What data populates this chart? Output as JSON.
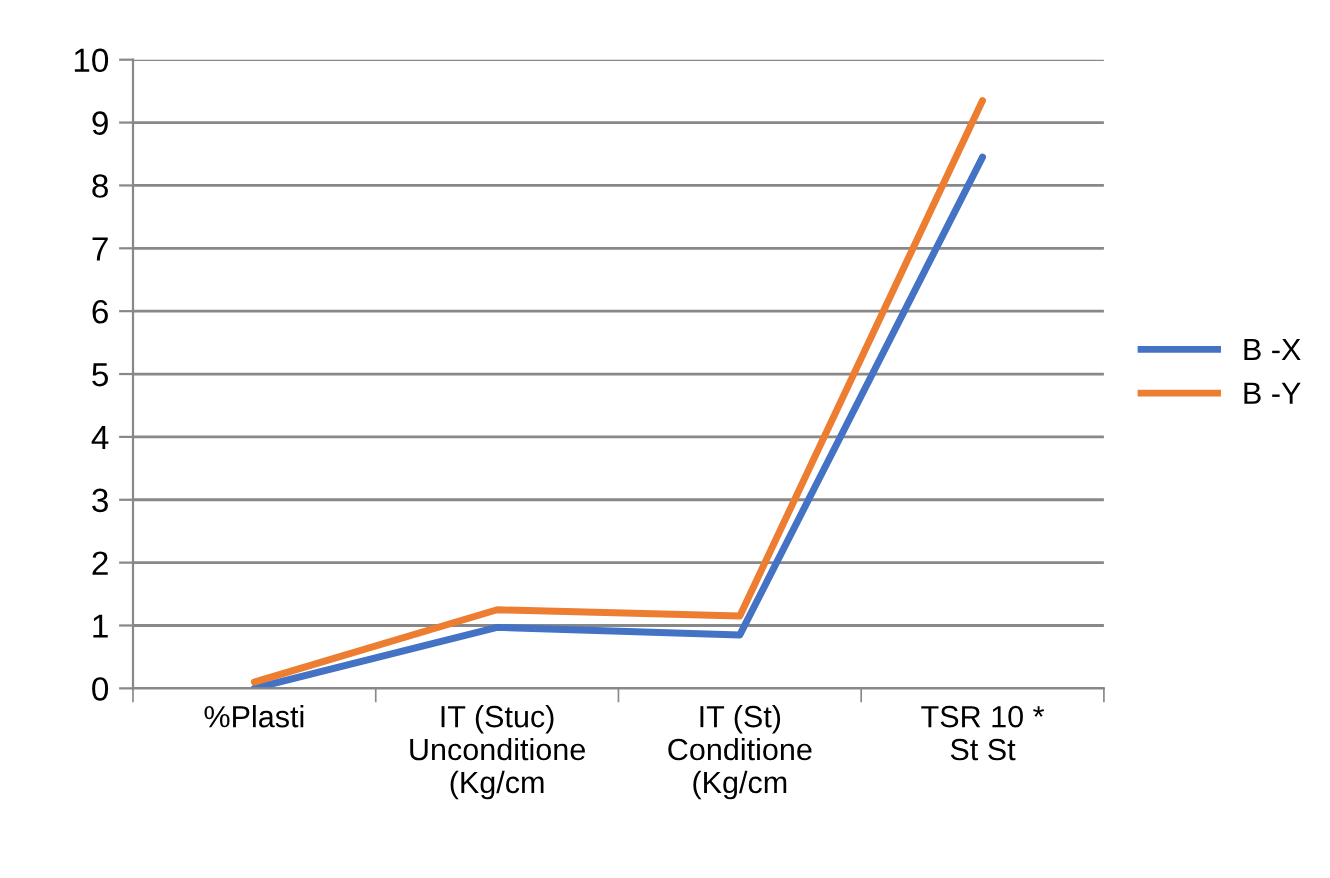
{
  "chart_data": {
    "type": "line",
    "categories": [
      "%Plasti",
      "IT (Stuc)\nUnconditione\n(Kg/cm",
      "IT (St)\nConditione\n(Kg/cm",
      "TSR 10 *\nSt St"
    ],
    "series": [
      {
        "name": "B -X",
        "color": "#4472c4",
        "values": [
          0,
          0.97,
          0.85,
          8.45
        ]
      },
      {
        "name": "B -Y",
        "color": "#ed7d31",
        "values": [
          0.1,
          1.25,
          1.15,
          9.35
        ]
      }
    ],
    "ylim": [
      0,
      10
    ],
    "yticks": [
      0,
      1,
      2,
      3,
      4,
      5,
      6,
      7,
      8,
      9,
      10
    ],
    "grid": "y",
    "legend": "right",
    "marker": "none",
    "line_style": "solid"
  }
}
